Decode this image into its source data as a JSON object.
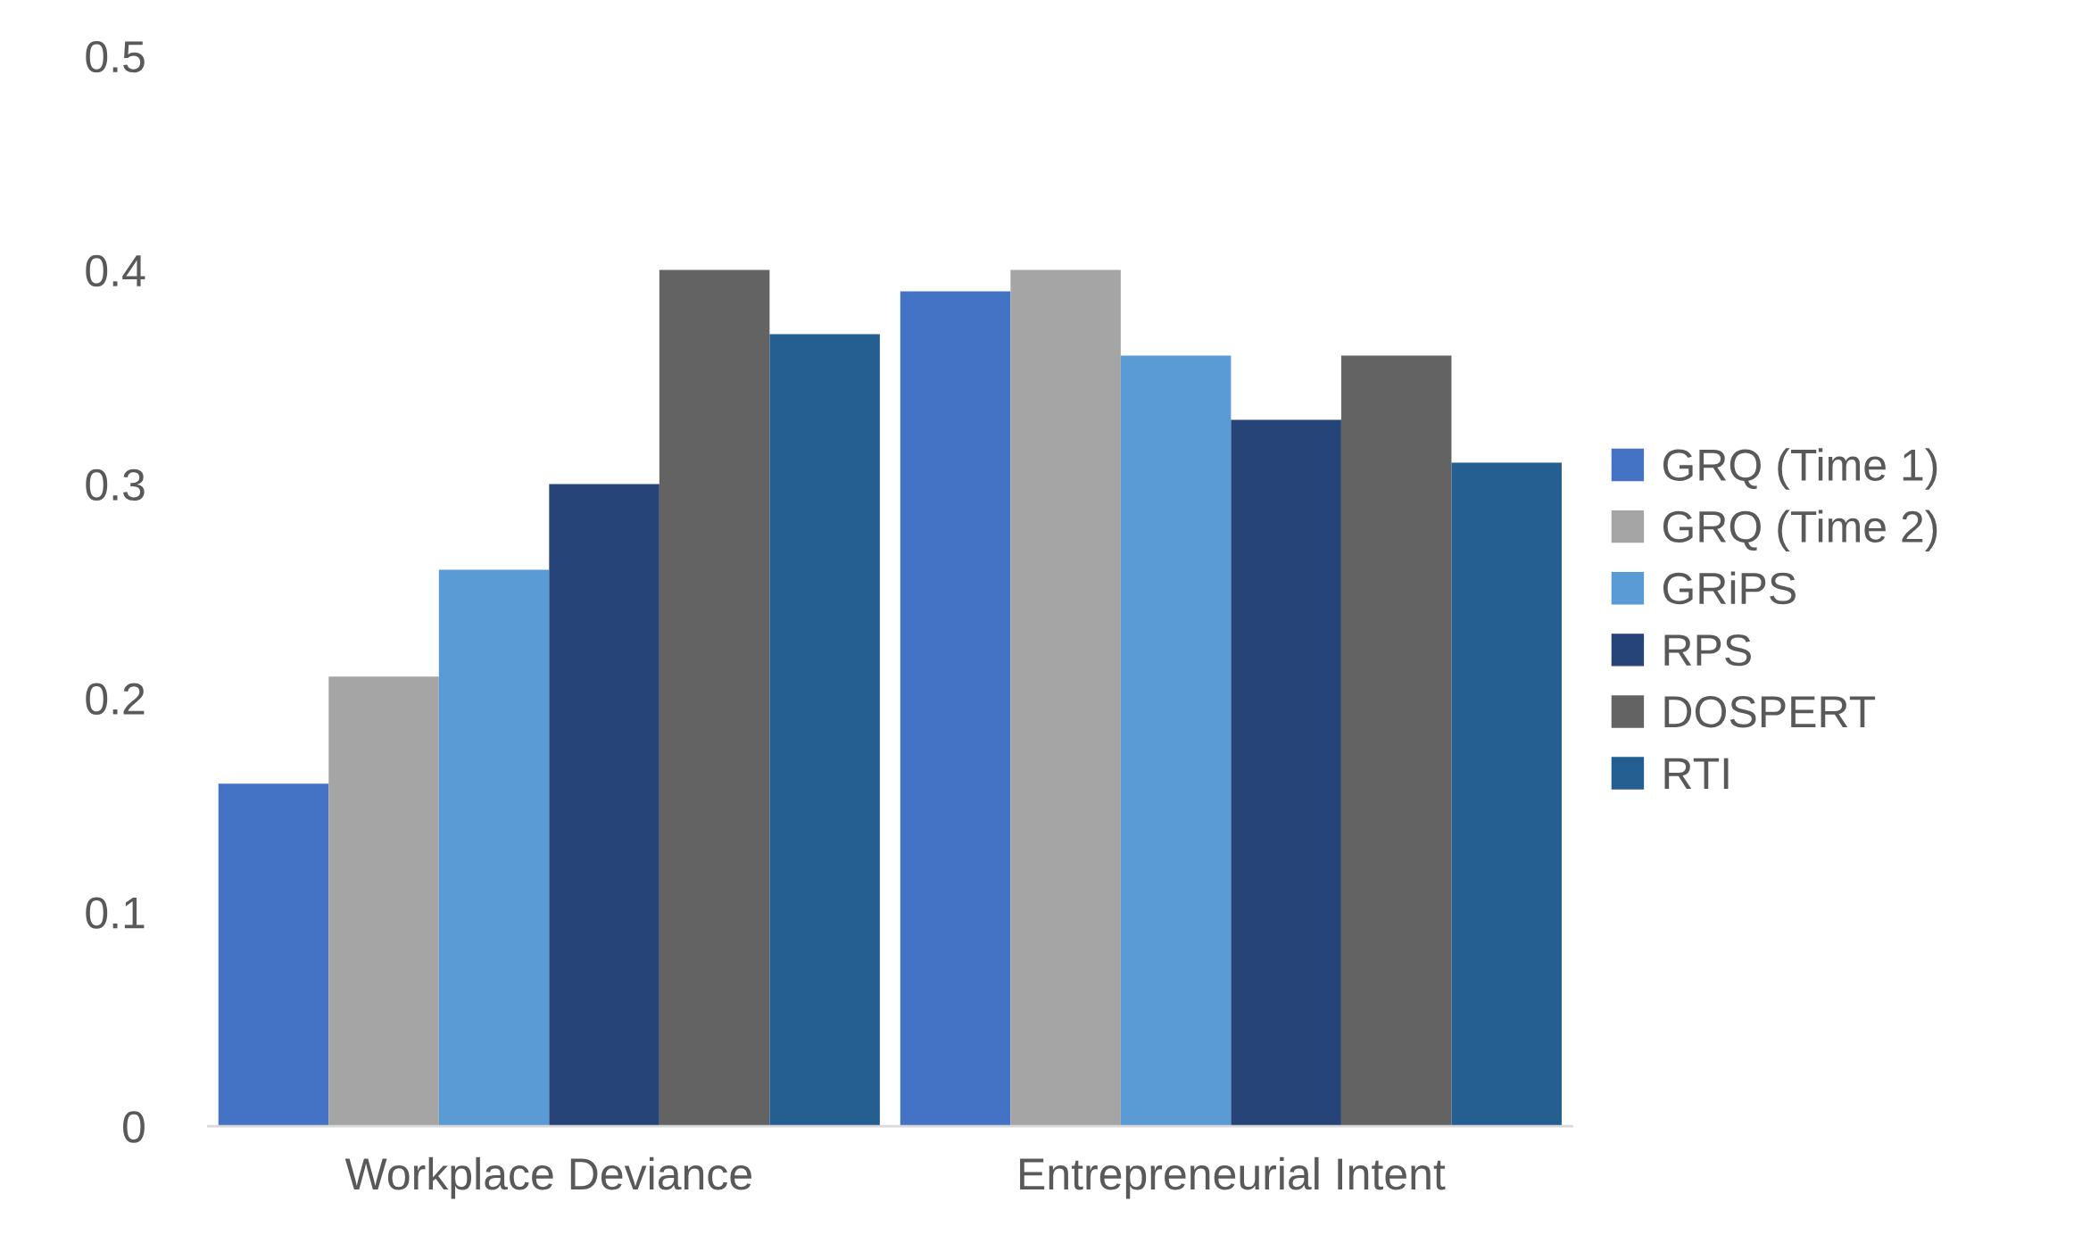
{
  "chart_data": {
    "type": "bar",
    "categories": [
      "Workplace Deviance",
      "Entrepreneurial Intent"
    ],
    "series": [
      {
        "name": "GRQ (Time 1)",
        "color": "#4472c4",
        "values": [
          0.16,
          0.39
        ]
      },
      {
        "name": "GRQ (Time 2)",
        "color": "#a5a5a5",
        "values": [
          0.21,
          0.4
        ]
      },
      {
        "name": "GRiPS",
        "color": "#5b9bd5",
        "values": [
          0.26,
          0.36
        ]
      },
      {
        "name": "RPS",
        "color": "#264478",
        "values": [
          0.3,
          0.33
        ]
      },
      {
        "name": "DOSPERT",
        "color": "#636363",
        "values": [
          0.4,
          0.36
        ]
      },
      {
        "name": "RTI",
        "color": "#255e91",
        "values": [
          0.37,
          0.31
        ]
      }
    ],
    "ylim": [
      0,
      0.5
    ],
    "yticks": [
      {
        "value": 0,
        "label": "0"
      },
      0.1,
      0.2,
      0.3,
      0.4,
      0.5
    ],
    "grid": false,
    "legend": "right"
  }
}
